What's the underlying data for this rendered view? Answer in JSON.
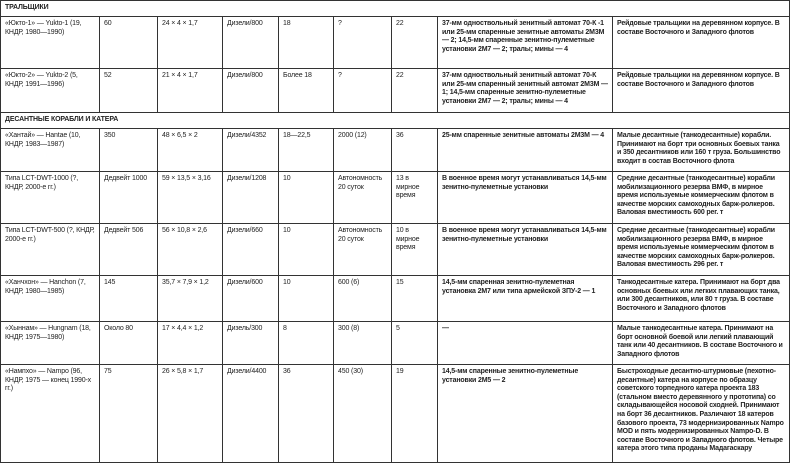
{
  "sections": [
    {
      "title": "ТРАЛЬЩИКИ",
      "rows": [
        [
          "«Юкто-1» — Yukto-1 (19, КНДР, 1980—1990)",
          "60",
          "24 × 4 × 1,7",
          "Дизели/800",
          "18",
          "?",
          "22",
          "37-мм одноствольный зенитный автомат 70-К -1 или 25-мм спаренные зенитные автоматы 2М3М — 2; 14,5-мм спаренные зенитно-пулеметные установки 2М7 — 2; тралы; мины — 4",
          "Рейдовые тральщики на деревянном корпусе. В составе Восточного и Западного флотов"
        ],
        [
          "«Юкто-2» — Yukto-2 (5, КНДР, 1991—1996)",
          "52",
          "21 × 4 × 1,7",
          "Дизели/800",
          "Более 18",
          "?",
          "22",
          "37-мм одноствольный зенитный автомат 70-К или 25-мм спаренный зенитный автомат 2М3М — 1; 14,5-мм спаренные зенитно-пулеметные установки 2М7 — 2; тралы; мины — 4",
          "Рейдовые тральщики на деревянном корпусе. В составе Восточного и Западного флотов"
        ]
      ]
    },
    {
      "title": "ДЕСАНТНЫЕ КОРАБЛИ И КАТЕРА",
      "rows": [
        [
          "«Хантай» — Hantae (10, КНДР, 1983—1987)",
          "350",
          "48 × 6,5 × 2",
          "Дизели/4352",
          "18—22,5",
          "2000 (12)",
          "36",
          "25-мм спаренные зенитные автоматы 2М3М — 4",
          "Малые десантные (танкодесантные) корабли. Принимают на борт три основных боевых танка и 350 десантников или 160 т груза. Большинство входит в состав Восточного флота"
        ],
        [
          "Типа LCT-DWT-1000 (?, КНДР, 2000-е гг.)",
          "Дедвейт 1000",
          "59 × 13,5 × 3,16",
          "Дизели/1208",
          "10",
          "Автономность 20 суток",
          "13 в мирное время",
          "В военное время могут устанавливаться 14,5-мм зенитно-пулеметные установки",
          "Средние десантные (танкодесантные) корабли мобилизационного резерва ВМФ, в мирное время используемые коммерческим флотом в качестве морских самоходных барж-ролкеров. Валовая вместимость 600 рег. т"
        ],
        [
          "Типа LCT-DWT-500 (?, КНДР, 2000-е гг.)",
          "Дедвейт 506",
          "56 × 10,8 × 2,6",
          "Дизели/660",
          "10",
          "Автономность 20 суток",
          "10 в мирное время",
          "В военное время могут устанавливаться 14,5-мм зенитно-пулеметные установки",
          "Средние десантные (танкодесантные) корабли мобилизационного резерва ВМФ, в мирное время используемые коммерческим флотом в качестве морских самоходных барж-ролкеров. Валовая вместимость 296 рег. т"
        ],
        [
          "«Ханчхон» — Hanchon (7, КНДР, 1980—1985)",
          "145",
          "35,7 × 7,9 × 1,2",
          "Дизели/600",
          "10",
          "600 (6)",
          "15",
          "14,5-мм спаренная зенитно-пулеметная установка 2М7 или типа армейской ЗПУ-2 — 1",
          "Танкодесантные катера. Принимают на борт два основных боевых или легких плавающих танка, или 300 десантников, или 80 т груза. В составе Восточного и Западного флотов"
        ],
        [
          "«Хыннам» — Hungnam (18, КНДР, 1975—1980)",
          "Около 80",
          "17 × 4,4 × 1,2",
          "Дизель/300",
          "8",
          "300 (8)",
          "5",
          "—",
          "Малые танкодесантные катера. Принимают на борт основной боевой или легкий плавающий танк или 40 десантников. В составе Восточного и Западного флотов"
        ],
        [
          "«Нампхо» — Nampo (96, КНДР, 1975 — конец 1990-х гг.)",
          "75",
          "26 × 5,8 × 1,7",
          "Дизели/4400",
          "36",
          "450 (30)",
          "19",
          "14,5-мм спаренные зенитно-пулеметные установки 2М5 — 2",
          "Быстроходные десантно-штурмовые (пехотно-десантные) катера на корпусе по образцу советского торпедного катера проекта 183 (стальном вместо деревянного у прототипа) со складывающейся носовой сходней. Принимают на борт 36 десантников. Различают 18 катеров базового проекта, 73 модернизированных Nampo MOD и пять модернизированных Nampo-D. В составе Восточного и Западного флотов. Четыре катера этого типа проданы Мадагаскару"
        ]
      ]
    }
  ]
}
